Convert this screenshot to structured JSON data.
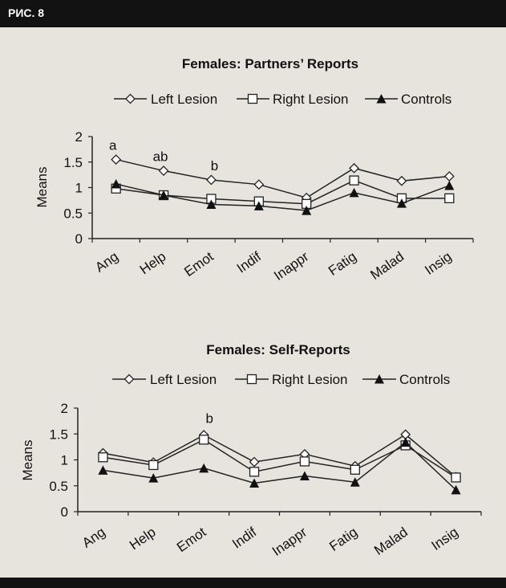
{
  "header": {
    "label": "РИС. 8"
  },
  "chart_data": [
    {
      "type": "line",
      "title": "Females: Partners’ Reports",
      "xlabel": "",
      "ylabel": "Means",
      "ylim": [
        0,
        2
      ],
      "yticks": [
        "0",
        "0.5",
        "1",
        "1.5",
        "2"
      ],
      "categories": [
        "Ang",
        "Help",
        "Emot",
        "Indif",
        "Inappr",
        "Fatig",
        "Malad",
        "Insig"
      ],
      "series": [
        {
          "name": "Left Lesion",
          "marker": "diamond",
          "values": [
            1.55,
            1.33,
            1.15,
            1.06,
            0.8,
            1.38,
            1.13,
            1.22
          ]
        },
        {
          "name": "Right Lesion",
          "marker": "square",
          "values": [
            0.98,
            0.85,
            0.78,
            0.73,
            0.68,
            1.14,
            0.79,
            0.79
          ]
        },
        {
          "name": "Controls",
          "marker": "triangle",
          "values": [
            1.07,
            0.85,
            0.67,
            0.64,
            0.55,
            0.9,
            0.69,
            1.04
          ]
        }
      ],
      "annotations": [
        {
          "text": "a",
          "category": "Ang"
        },
        {
          "text": "ab",
          "category": "Help"
        },
        {
          "text": "b",
          "category": "Emot"
        }
      ]
    },
    {
      "type": "line",
      "title": "Females: Self-Reports",
      "xlabel": "",
      "ylabel": "Means",
      "ylim": [
        0,
        2
      ],
      "yticks": [
        "0",
        "0.5",
        "1",
        "1.5",
        "2"
      ],
      "categories": [
        "Ang",
        "Help",
        "Emot",
        "Indif",
        "Inappr",
        "Fatig",
        "Malad",
        "Insig"
      ],
      "series": [
        {
          "name": "Left Lesion",
          "marker": "diamond",
          "values": [
            1.13,
            0.95,
            1.48,
            0.96,
            1.11,
            0.88,
            1.49,
            0.67
          ]
        },
        {
          "name": "Right Lesion",
          "marker": "square",
          "values": [
            1.05,
            0.9,
            1.39,
            0.77,
            0.97,
            0.81,
            1.28,
            0.66
          ]
        },
        {
          "name": "Controls",
          "marker": "triangle",
          "values": [
            0.8,
            0.65,
            0.84,
            0.55,
            0.69,
            0.57,
            1.34,
            0.42
          ]
        }
      ],
      "annotations": [
        {
          "text": "b",
          "category": "Emot"
        }
      ]
    }
  ],
  "colors": {
    "line": "#222222",
    "marker_fill": "#ffffff",
    "background": "#e7e4de",
    "header": "#121212"
  }
}
